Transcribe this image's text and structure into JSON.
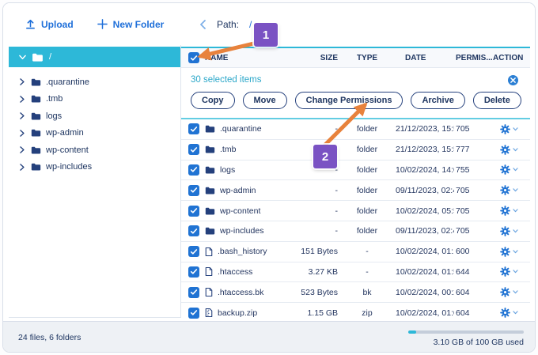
{
  "toolbar": {
    "upload_label": "Upload",
    "new_folder_label": "New Folder",
    "path_label": "Path:",
    "path_value": "/"
  },
  "sidebar": {
    "root": {
      "name": "/"
    },
    "items": [
      {
        "name": ".quarantine"
      },
      {
        "name": ".tmb"
      },
      {
        "name": "logs"
      },
      {
        "name": "wp-admin"
      },
      {
        "name": "wp-content"
      },
      {
        "name": "wp-includes"
      }
    ]
  },
  "selection_banner": {
    "text": "30 selected items",
    "buttons": [
      "Copy",
      "Move",
      "Change Permissions",
      "Archive",
      "Delete"
    ]
  },
  "table": {
    "columns": [
      "NAME",
      "SIZE",
      "TYPE",
      "DATE",
      "PERMIS...",
      "ACTION"
    ],
    "rows": [
      {
        "name": ".quarantine",
        "icon": "folder",
        "size": "-",
        "type": "folder",
        "date": "21/12/2023, 15:5...",
        "permissions": "705",
        "selected": true
      },
      {
        "name": ".tmb",
        "icon": "folder",
        "size": "-",
        "type": "folder",
        "date": "21/12/2023, 15:5...",
        "permissions": "777",
        "selected": true
      },
      {
        "name": "logs",
        "icon": "folder",
        "size": "-",
        "type": "folder",
        "date": "10/02/2024, 14:0...",
        "permissions": "755",
        "selected": true
      },
      {
        "name": "wp-admin",
        "icon": "folder",
        "size": "-",
        "type": "folder",
        "date": "09/11/2023, 02:4...",
        "permissions": "705",
        "selected": true
      },
      {
        "name": "wp-content",
        "icon": "folder",
        "size": "-",
        "type": "folder",
        "date": "10/02/2024, 05:5...",
        "permissions": "705",
        "selected": true
      },
      {
        "name": "wp-includes",
        "icon": "folder",
        "size": "-",
        "type": "folder",
        "date": "09/11/2023, 02:4...",
        "permissions": "705",
        "selected": true
      },
      {
        "name": ".bash_history",
        "icon": "file",
        "size": "151 Bytes",
        "type": "-",
        "date": "10/02/2024, 01:1...",
        "permissions": "600",
        "selected": true
      },
      {
        "name": ".htaccess",
        "icon": "file",
        "size": "3.27 KB",
        "type": "-",
        "date": "10/02/2024, 01:5...",
        "permissions": "644",
        "selected": true
      },
      {
        "name": ".htaccess.bk",
        "icon": "file",
        "size": "523 Bytes",
        "type": "bk",
        "date": "10/02/2024, 00:2...",
        "permissions": "604",
        "selected": true
      },
      {
        "name": "backup.zip",
        "icon": "zip",
        "size": "1.15 GB",
        "type": "zip",
        "date": "10/02/2024, 01:0...",
        "permissions": "604",
        "selected": true
      }
    ]
  },
  "footer": {
    "summary": "24 files, 6 folders",
    "usage_text": "3.10 GB of 100 GB used",
    "usage_percent": 3.1
  },
  "annotations": [
    {
      "label": "1",
      "target": "select-all-checkbox"
    },
    {
      "label": "2",
      "target": "archive-button"
    }
  ],
  "colors": {
    "accent_cyan": "#2db8d8",
    "primary_blue": "#2073d3",
    "navy": "#1e3560",
    "banner_cyan_text": "#2ba7c9",
    "annotation_orange": "#e8823c",
    "annotation_purple": "#7a52c3"
  }
}
